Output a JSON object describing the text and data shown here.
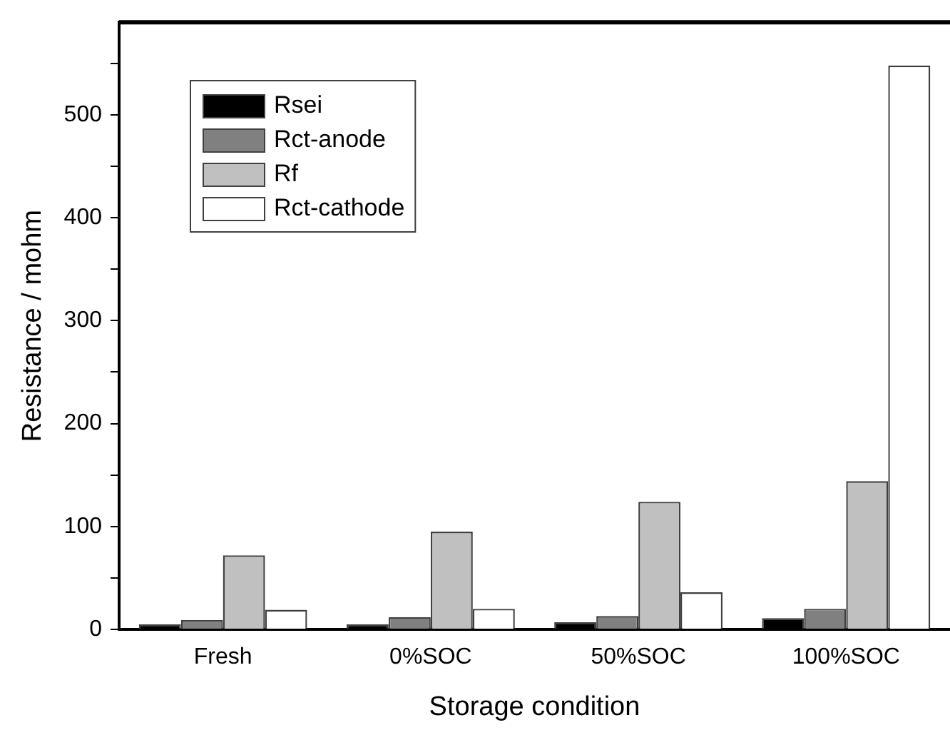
{
  "chart_data": {
    "type": "bar",
    "xlabel": "Storage condition",
    "ylabel": "Resistance / mohm",
    "categories": [
      "Fresh",
      "0%SOC",
      "50%SOC",
      "100%SOC"
    ],
    "series": [
      {
        "name": "Rsei",
        "color": "#000000",
        "values": [
          5,
          5,
          7,
          11
        ]
      },
      {
        "name": "Rct-anode",
        "color": "#808080",
        "values": [
          9,
          12,
          13,
          20
        ]
      },
      {
        "name": "Rf",
        "color": "#c0c0c0",
        "values": [
          72,
          95,
          124,
          144
        ]
      },
      {
        "name": "Rct-cathode",
        "color": "#ffffff",
        "values": [
          19,
          20,
          36,
          548
        ]
      }
    ],
    "ylim": [
      0,
      590
    ],
    "yticks": [
      0,
      {
        "value": 50,
        "label": null
      },
      100,
      {
        "value": 150,
        "label": null
      },
      200,
      {
        "value": 250,
        "label": null
      },
      300,
      {
        "value": 350,
        "label": null
      },
      400,
      {
        "value": 450,
        "label": null
      },
      500,
      {
        "value": 550,
        "label": null
      }
    ],
    "grid": false,
    "legend": "top left"
  }
}
